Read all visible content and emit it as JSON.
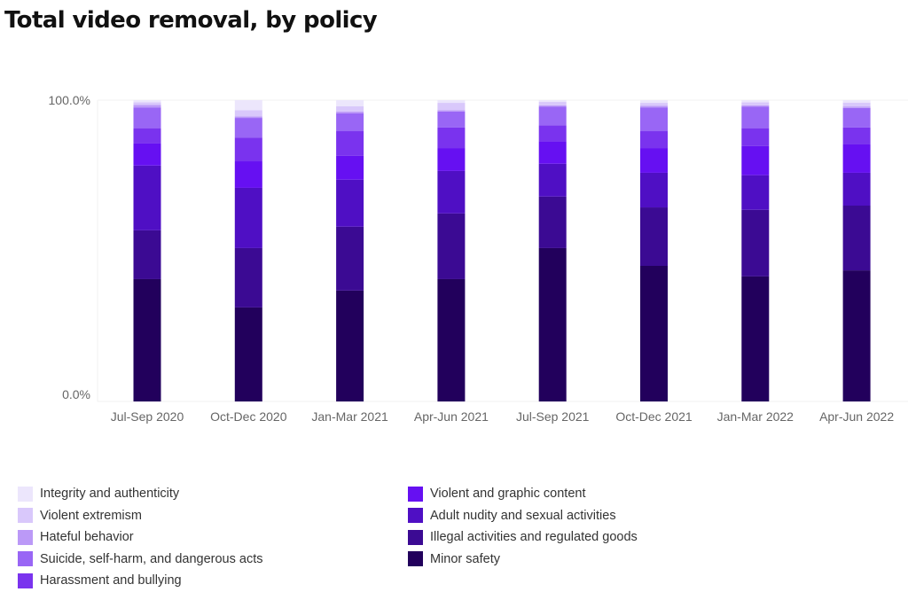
{
  "title": "Total video removal, by policy",
  "chart_data": {
    "type": "bar",
    "stacked": true,
    "normalized": true,
    "title": "Total video removal, by policy",
    "xlabel": "",
    "ylabel": "",
    "ylim": [
      0,
      100
    ],
    "yticks": [
      "0.0%",
      "100.0%"
    ],
    "grid": false,
    "legend_position": "bottom",
    "categories": [
      "Jul-Sep 2020",
      "Oct-Dec 2020",
      "Jan-Mar 2021",
      "Apr-Jun 2021",
      "Jul-Sep 2021",
      "Oct-Dec 2021",
      "Jan-Mar 2022",
      "Apr-Jun 2022"
    ],
    "series": [
      {
        "name": "Minor safety",
        "color": "#22005c",
        "values": [
          40.6,
          31.2,
          36.8,
          40.6,
          50.9,
          45.0,
          41.5,
          43.5
        ]
      },
      {
        "name": "Illegal activities and regulated goods",
        "color": "#3b0a93",
        "values": [
          16.2,
          19.7,
          21.2,
          21.8,
          17.1,
          19.4,
          22.1,
          21.5
        ]
      },
      {
        "name": "Adult nudity and sexual activities",
        "color": "#4f0fc4",
        "values": [
          21.5,
          20.0,
          15.6,
          14.1,
          10.9,
          11.5,
          11.5,
          10.9
        ]
      },
      {
        "name": "Violent and graphic content",
        "color": "#6610f2",
        "values": [
          7.4,
          8.8,
          7.9,
          7.6,
          7.4,
          8.2,
          9.7,
          9.4
        ]
      },
      {
        "name": "Harassment and bullying",
        "color": "#7a33ee",
        "values": [
          5.0,
          7.9,
          8.2,
          6.8,
          5.3,
          5.6,
          5.9,
          5.6
        ]
      },
      {
        "name": "Suicide, self-harm, and dangerous acts",
        "color": "#9966f5",
        "values": [
          6.8,
          6.5,
          5.9,
          5.3,
          6.2,
          7.9,
          7.1,
          6.5
        ]
      },
      {
        "name": "Hateful behavior",
        "color": "#bb99f7",
        "values": [
          0.9,
          0.5,
          0.6,
          0.5,
          0.5,
          0.5,
          0.5,
          0.5
        ]
      },
      {
        "name": "Violent extremism",
        "color": "#d9c8fb",
        "values": [
          0.9,
          2.1,
          1.8,
          2.4,
          1.1,
          1.0,
          1.0,
          1.3
        ]
      },
      {
        "name": "Integrity and authenticity",
        "color": "#ece6fc",
        "values": [
          0.7,
          3.3,
          2.0,
          0.9,
          0.6,
          0.9,
          0.7,
          0.8
        ]
      }
    ]
  },
  "legend": {
    "left": [
      {
        "label": "Integrity and authenticity",
        "color": "#ece6fc"
      },
      {
        "label": "Violent extremism",
        "color": "#d9c8fb"
      },
      {
        "label": "Hateful behavior",
        "color": "#bb99f7"
      },
      {
        "label": "Suicide, self-harm, and dangerous acts",
        "color": "#9966f5"
      },
      {
        "label": "Harassment and bullying",
        "color": "#7a33ee"
      }
    ],
    "right": [
      {
        "label": "Violent and graphic content",
        "color": "#6610f2"
      },
      {
        "label": "Adult nudity and sexual activities",
        "color": "#4f0fc4"
      },
      {
        "label": "Illegal activities and regulated goods",
        "color": "#3b0a93"
      },
      {
        "label": "Minor safety",
        "color": "#22005c"
      }
    ]
  }
}
